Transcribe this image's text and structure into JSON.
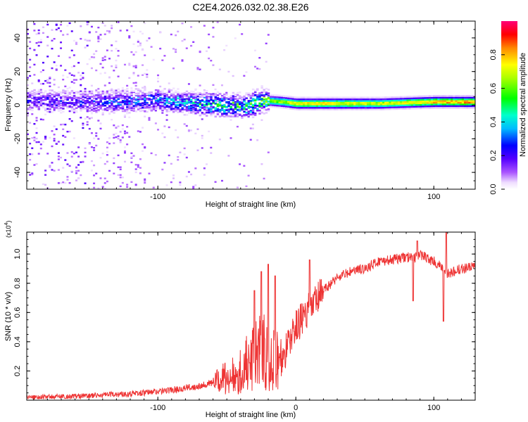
{
  "chart_data": [
    {
      "type": "heatmap",
      "title": "C2E4.2026.032.02.38.E26",
      "xlabel": "Height of straight line (km)",
      "ylabel": "Frequency (Hz)",
      "xlim": [
        -195,
        130
      ],
      "ylim": [
        -50,
        50
      ],
      "x_ticks": [
        -100,
        100
      ],
      "y_ticks": [
        -40,
        -20,
        0,
        20,
        40
      ],
      "colorbar": {
        "label": "Normalized spectral amplitude",
        "range": [
          0,
          1
        ],
        "ticks": [
          0.0,
          0.2,
          0.4,
          0.6,
          0.8
        ],
        "colormap": [
          "#ffffff",
          "#cc99ff",
          "#7700ff",
          "#0000ff",
          "#00ffff",
          "#00ff00",
          "#ffff00",
          "#ff8800",
          "#ff0000",
          "#ff0077"
        ]
      },
      "ridge": {
        "description": "dominant frequency band",
        "x": [
          -195,
          -150,
          -100,
          -70,
          -50,
          -35,
          -25,
          -10,
          0,
          20,
          60,
          100,
          130
        ],
        "frequency": [
          3,
          2,
          3,
          1,
          0,
          0,
          3,
          2,
          1,
          1,
          1,
          2,
          2
        ],
        "amplitude": [
          0.2,
          0.25,
          0.35,
          0.45,
          0.5,
          0.55,
          0.6,
          0.7,
          0.8,
          0.8,
          0.75,
          0.85,
          0.9
        ]
      }
    },
    {
      "type": "line",
      "xlabel": "Height of straight line (km)",
      "ylabel": "SNR (10 * v/v)",
      "y_multiplier_label": "(x10",
      "y_multiplier_exp": "4",
      "y_multiplier_close": ")",
      "xlim": [
        -195,
        130
      ],
      "ylim": [
        0,
        1.15
      ],
      "x_ticks": [
        -100,
        0,
        100
      ],
      "y_ticks": [
        0.2,
        0.4,
        0.6,
        0.8,
        1.0
      ],
      "series": [
        {
          "name": "SNR",
          "color": "#ee3333",
          "x": [
            -195,
            -170,
            -150,
            -130,
            -110,
            -90,
            -75,
            -60,
            -50,
            -40,
            -35,
            -30,
            -25,
            -20,
            -15,
            -10,
            -7,
            -4,
            -2,
            0,
            3,
            8,
            15,
            20,
            30,
            40,
            50,
            60,
            70,
            80,
            85,
            90,
            95,
            100,
            104,
            106,
            108,
            110,
            115,
            120,
            130
          ],
          "values": [
            0.02,
            0.025,
            0.03,
            0.04,
            0.05,
            0.07,
            0.09,
            0.12,
            0.16,
            0.2,
            0.26,
            0.3,
            0.34,
            0.32,
            0.28,
            0.28,
            0.35,
            0.42,
            0.46,
            0.5,
            0.54,
            0.6,
            0.68,
            0.75,
            0.84,
            0.88,
            0.9,
            0.95,
            0.96,
            0.98,
            0.97,
            1.0,
            0.97,
            0.95,
            0.92,
            0.9,
            0.88,
            0.86,
            0.88,
            0.9,
            0.91
          ]
        }
      ],
      "spikes": [
        {
          "x": -30,
          "value": 0.75
        },
        {
          "x": -25,
          "value": 0.88
        },
        {
          "x": -20,
          "value": 0.93
        },
        {
          "x": -15,
          "value": 0.85
        },
        {
          "x": 10,
          "value": 0.96
        },
        {
          "x": 85,
          "value": 0.68
        },
        {
          "x": 88,
          "value": 1.09
        },
        {
          "x": 107,
          "value": 0.54
        },
        {
          "x": 109,
          "value": 1.15
        }
      ]
    }
  ]
}
